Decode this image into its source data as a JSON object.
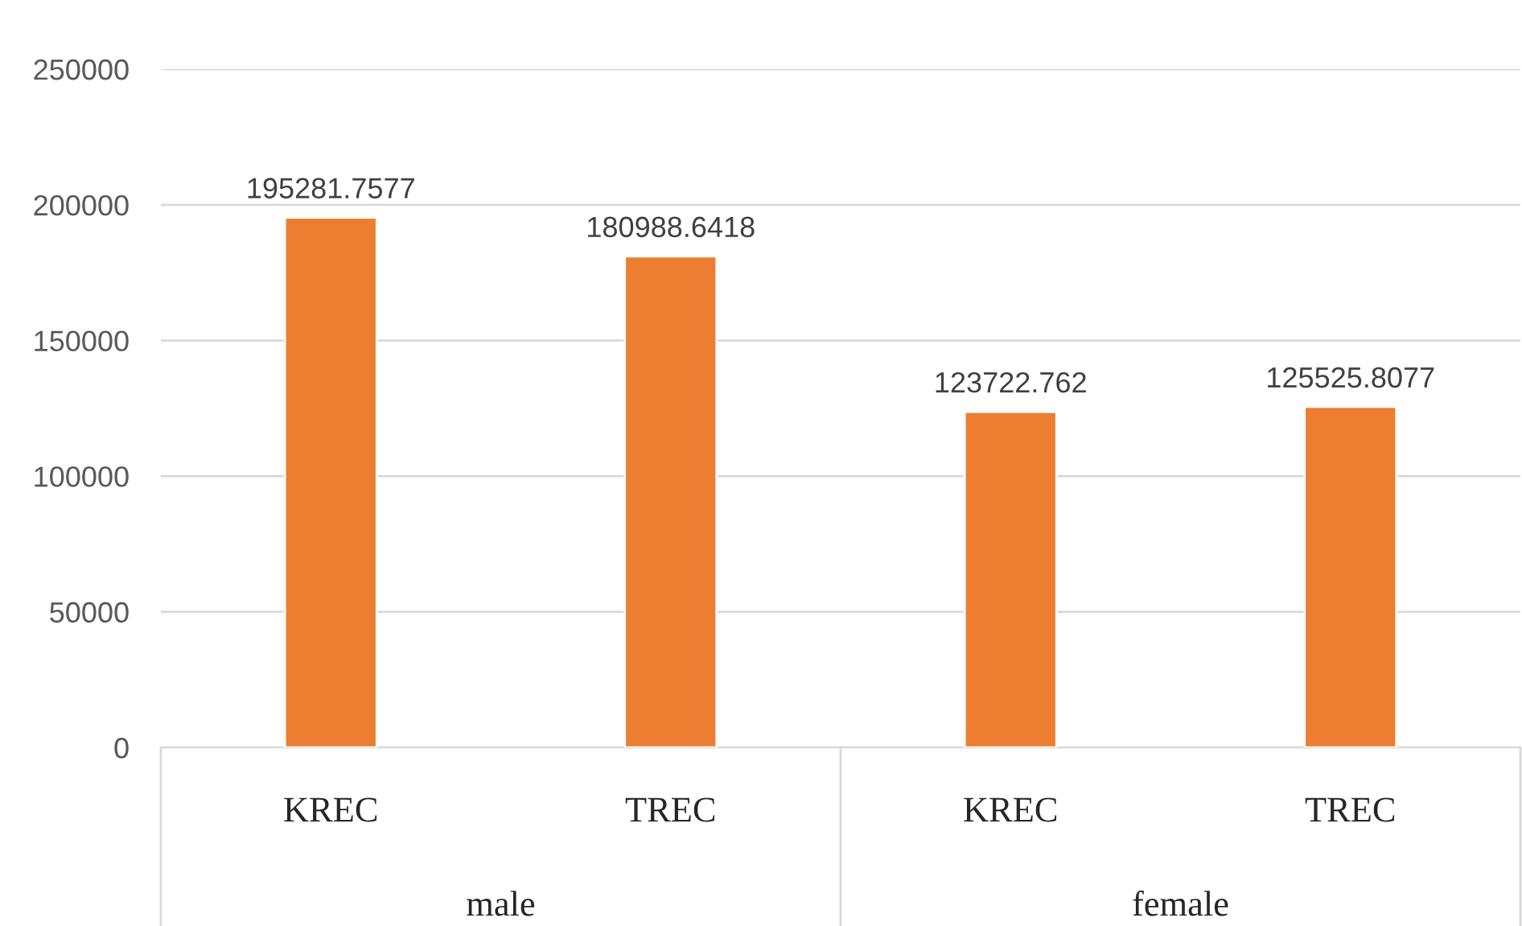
{
  "chart_data": {
    "type": "bar",
    "categories": [
      "KREC",
      "TREC",
      "KREC",
      "TREC"
    ],
    "values": [
      195281.7577,
      180988.6418,
      123722.762,
      125525.8077
    ],
    "color": "#ed7d31",
    "ylim": [
      0,
      250000
    ],
    "yticks": [
      0,
      50000,
      100000,
      150000,
      200000,
      250000
    ],
    "grid": "y",
    "data_labels": true,
    "legend": false,
    "annotations": [
      "male",
      "female"
    ]
  }
}
